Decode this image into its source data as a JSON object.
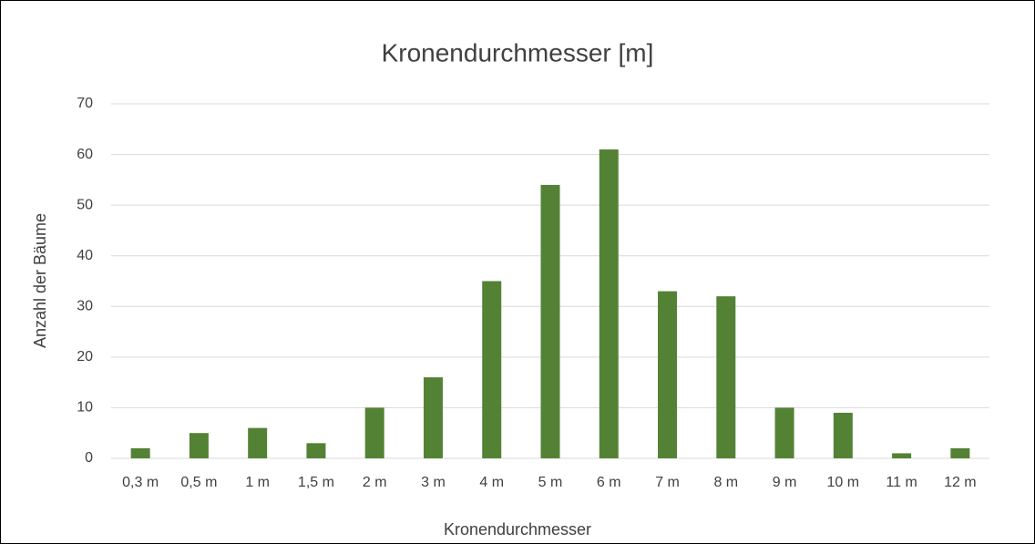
{
  "chart_data": {
    "type": "bar",
    "title": "Kronendurchmesser [m]",
    "x_label": "Kronendurchmesser",
    "y_label": "Anzahl der Bäume",
    "categories": [
      "0,3 m",
      "0,5 m",
      "1 m",
      "1,5 m",
      "2 m",
      "3 m",
      "4 m",
      "5 m",
      "6 m",
      "7 m",
      "8 m",
      "9 m",
      "10 m",
      "11 m",
      "12 m"
    ],
    "values": [
      2,
      5,
      6,
      3,
      10,
      16,
      35,
      54,
      61,
      33,
      32,
      10,
      9,
      1,
      2
    ],
    "color": "#548235",
    "ylim": [
      0,
      70
    ],
    "yticks": [
      0,
      10,
      20,
      30,
      40,
      50,
      60,
      70
    ],
    "grid": true
  }
}
